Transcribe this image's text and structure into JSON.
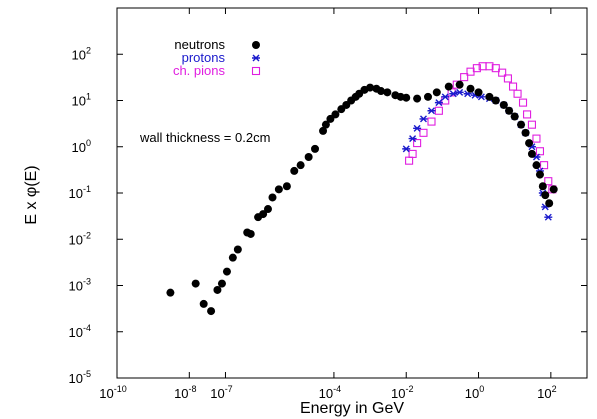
{
  "chart_data": {
    "type": "scatter",
    "title": "",
    "xlabel": "Energy in GeV",
    "ylabel": "E x φ(E)",
    "xscale": "log",
    "yscale": "log",
    "xlim": [
      1e-10,
      1000
    ],
    "ylim": [
      1e-05,
      1000
    ],
    "grid": false,
    "legend_position": "top-left",
    "x_ticks": [
      {
        "base": "10",
        "exp": "-10",
        "value": 1e-10
      },
      {
        "base": "10",
        "exp": "-8",
        "value": 1e-08
      },
      {
        "base": "10",
        "exp": "-7",
        "value": 1e-07
      },
      {
        "base": "10",
        "exp": "-4",
        "value": 0.0001
      },
      {
        "base": "10",
        "exp": "-2",
        "value": 0.01
      },
      {
        "base": "10",
        "exp": "0",
        "value": 1
      },
      {
        "base": "10",
        "exp": "2",
        "value": 100
      }
    ],
    "y_ticks": [
      {
        "base": "10",
        "exp": "-5",
        "value": 1e-05
      },
      {
        "base": "10",
        "exp": "-4",
        "value": 0.0001
      },
      {
        "base": "10",
        "exp": "-3",
        "value": 0.001
      },
      {
        "base": "10",
        "exp": "-2",
        "value": 0.01
      },
      {
        "base": "10",
        "exp": "-1",
        "value": 0.1
      },
      {
        "base": "10",
        "exp": "0",
        "value": 1
      },
      {
        "base": "10",
        "exp": "1",
        "value": 10
      },
      {
        "base": "10",
        "exp": "2",
        "value": 100
      }
    ],
    "annotation": "wall thickness = 0.2cm",
    "series": [
      {
        "name": "neutrons",
        "color": "#000000",
        "marker": "filled-circle",
        "points": [
          [
            3e-09,
            0.0007
          ],
          [
            1.5e-08,
            0.0011
          ],
          [
            2.5e-08,
            0.0004
          ],
          [
            4e-08,
            0.00028
          ],
          [
            6e-08,
            0.0008
          ],
          [
            8e-08,
            0.0011
          ],
          [
            1.1e-07,
            0.002
          ],
          [
            1.6e-07,
            0.004
          ],
          [
            2.2e-07,
            0.006
          ],
          [
            4e-07,
            0.014
          ],
          [
            5e-07,
            0.013
          ],
          [
            8e-07,
            0.03
          ],
          [
            1.1e-06,
            0.035
          ],
          [
            1.5e-06,
            0.045
          ],
          [
            2e-06,
            0.08
          ],
          [
            3e-06,
            0.12
          ],
          [
            5e-06,
            0.14
          ],
          [
            8e-06,
            0.3
          ],
          [
            1.2e-05,
            0.4
          ],
          [
            2e-05,
            0.6
          ],
          [
            3e-05,
            0.9
          ],
          [
            5e-05,
            2.2
          ],
          [
            6e-05,
            3
          ],
          [
            8e-05,
            4
          ],
          [
            0.00011,
            5
          ],
          [
            0.00016,
            6.5
          ],
          [
            0.00022,
            8
          ],
          [
            0.0003,
            10
          ],
          [
            0.0004,
            12
          ],
          [
            0.0005,
            14
          ],
          [
            0.0007,
            17
          ],
          [
            0.001,
            19
          ],
          [
            0.0015,
            18
          ],
          [
            0.002,
            16
          ],
          [
            0.003,
            15
          ],
          [
            0.005,
            13
          ],
          [
            0.007,
            12
          ],
          [
            0.01,
            11.5
          ],
          [
            0.02,
            11
          ],
          [
            0.04,
            12
          ],
          [
            0.07,
            15
          ],
          [
            0.15,
            20
          ],
          [
            0.3,
            22
          ],
          [
            0.6,
            18
          ],
          [
            1,
            15
          ],
          [
            2,
            12
          ],
          [
            3,
            10
          ],
          [
            5,
            8
          ],
          [
            7,
            6
          ],
          [
            10,
            4.5
          ],
          [
            15,
            3
          ],
          [
            20,
            2
          ],
          [
            25,
            1.2
          ],
          [
            30,
            0.7
          ],
          [
            40,
            0.4
          ],
          [
            50,
            0.25
          ],
          [
            60,
            0.14
          ],
          [
            70,
            0.09
          ],
          [
            90,
            0.06
          ],
          [
            120,
            0.12
          ]
        ]
      },
      {
        "name": "protons",
        "color": "#1a1acc",
        "marker": "asterisk",
        "points": [
          [
            0.01,
            0.9
          ],
          [
            0.015,
            1.5
          ],
          [
            0.02,
            2.5
          ],
          [
            0.03,
            4
          ],
          [
            0.05,
            6
          ],
          [
            0.08,
            9
          ],
          [
            0.12,
            12
          ],
          [
            0.2,
            14
          ],
          [
            0.3,
            15
          ],
          [
            0.5,
            14
          ],
          [
            0.8,
            13
          ],
          [
            1.2,
            12
          ],
          [
            2,
            11
          ],
          [
            3,
            10
          ],
          [
            5,
            8
          ],
          [
            7,
            6
          ],
          [
            10,
            4.5
          ],
          [
            15,
            3
          ],
          [
            20,
            2
          ],
          [
            30,
            1
          ],
          [
            40,
            0.6
          ],
          [
            50,
            0.3
          ],
          [
            60,
            0.1
          ],
          [
            70,
            0.05
          ],
          [
            85,
            0.03
          ]
        ]
      },
      {
        "name": "ch. pions",
        "color": "#e01ee0",
        "marker": "open-square",
        "points": [
          [
            0.012,
            0.5
          ],
          [
            0.015,
            0.7
          ],
          [
            0.02,
            1.2
          ],
          [
            0.03,
            2
          ],
          [
            0.05,
            3.5
          ],
          [
            0.08,
            6
          ],
          [
            0.12,
            10
          ],
          [
            0.18,
            15
          ],
          [
            0.25,
            22
          ],
          [
            0.4,
            32
          ],
          [
            0.6,
            42
          ],
          [
            0.9,
            50
          ],
          [
            1.3,
            55
          ],
          [
            2,
            55
          ],
          [
            3,
            50
          ],
          [
            4.5,
            40
          ],
          [
            6.5,
            30
          ],
          [
            9,
            20
          ],
          [
            12,
            14
          ],
          [
            17,
            9
          ],
          [
            22,
            5
          ],
          [
            30,
            3
          ],
          [
            40,
            1.5
          ],
          [
            50,
            0.8
          ],
          [
            65,
            0.4
          ],
          [
            85,
            0.18
          ],
          [
            110,
            0.12
          ]
        ]
      }
    ]
  }
}
